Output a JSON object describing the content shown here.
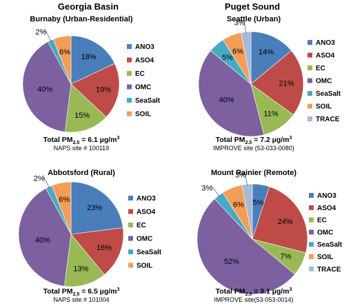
{
  "region_titles": [
    "Georgia Basin",
    "Puget Sound"
  ],
  "chart_data": [
    {
      "type": "pie",
      "title": "Burnaby (Urban-Residential)",
      "slices": [
        {
          "label": "ANO3",
          "value": 18,
          "label_text": "18%",
          "color": "#4a7ebb"
        },
        {
          "label": "ASO4",
          "value": 19,
          "label_text": "19%",
          "color": "#be4b48"
        },
        {
          "label": "EC",
          "value": 15,
          "label_text": "15%",
          "color": "#98b954"
        },
        {
          "label": "OMC",
          "value": 40,
          "label_text": "40%",
          "color": "#7d60a0"
        },
        {
          "label": "SeaSalt",
          "value": 2,
          "label_text": "2%",
          "color": "#46aac5"
        },
        {
          "label": "SOIL",
          "value": 6,
          "label_text": "6%",
          "color": "#f59d56"
        }
      ],
      "legend": [
        "ANO3",
        "ASO4",
        "EC",
        "OMC",
        "SeaSalt",
        "SOIL"
      ],
      "legend_placement": "right",
      "footer_total": "6.1 µg/m³",
      "footer_site": "NAPS site # 100119"
    },
    {
      "type": "pie",
      "title": "Seattle (Urban)",
      "slices": [
        {
          "label": "ANO3",
          "value": 14,
          "label_text": "14%",
          "color": "#4a7ebb"
        },
        {
          "label": "ASO4",
          "value": 21,
          "label_text": "21%",
          "color": "#be4b48"
        },
        {
          "label": "EC",
          "value": 11,
          "label_text": "11%",
          "color": "#98b954"
        },
        {
          "label": "OMC",
          "value": 40,
          "label_text": "40%",
          "color": "#7d60a0"
        },
        {
          "label": "SeaSalt",
          "value": 5,
          "label_text": "5%",
          "color": "#46aac5"
        },
        {
          "label": "SOIL",
          "value": 6,
          "label_text": "6%",
          "color": "#f59d56"
        },
        {
          "label": "TRACE",
          "value": 3,
          "label_text": "3%",
          "color": "#a5b9d8"
        }
      ],
      "legend": [
        "ANO3",
        "ASO4",
        "EC",
        "OMC",
        "SeaSalt",
        "SOIL",
        "TRACE"
      ],
      "legend_placement": "right",
      "footer_total": "7.2 µg/m³",
      "footer_site": "IMPROVE site (53-033-0080)"
    },
    {
      "type": "pie",
      "title": "Abbotsford (Rural)",
      "slices": [
        {
          "label": "ANO3",
          "value": 23,
          "label_text": "23%",
          "color": "#4a7ebb"
        },
        {
          "label": "ASO4",
          "value": 16,
          "label_text": "16%",
          "color": "#be4b48"
        },
        {
          "label": "EC",
          "value": 13,
          "label_text": "13%",
          "color": "#98b954"
        },
        {
          "label": "OMC",
          "value": 40,
          "label_text": "40%",
          "color": "#7d60a0"
        },
        {
          "label": "SeaSalt",
          "value": 2,
          "label_text": "2%",
          "color": "#46aac5"
        },
        {
          "label": "SOIL",
          "value": 6,
          "label_text": "6%",
          "color": "#f59d56"
        }
      ],
      "legend": [
        "ANO3",
        "ASO4",
        "EC",
        "OMC",
        "SeaSalt",
        "SOIL"
      ],
      "legend_placement": "right",
      "footer_total": "6.5 µg/m³",
      "footer_site": "NAPS site # 101004"
    },
    {
      "type": "pie",
      "title": "Mount Rainier (Remote)",
      "slices": [
        {
          "label": "ANO3",
          "value": 5,
          "label_text": "5%",
          "color": "#4a7ebb"
        },
        {
          "label": "ASO4",
          "value": 24,
          "label_text": "24%",
          "color": "#be4b48"
        },
        {
          "label": "EC",
          "value": 7,
          "label_text": "7%",
          "color": "#98b954"
        },
        {
          "label": "OMC",
          "value": 52,
          "label_text": "52%",
          "color": "#7d60a0"
        },
        {
          "label": "SeaSalt",
          "value": 3,
          "label_text": "3%",
          "color": "#46aac5"
        },
        {
          "label": "SOIL",
          "value": 6,
          "label_text": "6%",
          "color": "#f59d56"
        },
        {
          "label": "TRACE",
          "value": 3,
          "label_text": "3%",
          "color": "#a5b9d8"
        }
      ],
      "legend": [
        "ANO3",
        "ASO4",
        "EC",
        "OMC",
        "SeaSalt",
        "SOIL",
        "TRACE"
      ],
      "legend_placement": "right",
      "footer_total": "3.1 µg/m³",
      "footer_site": "IMPROVE site(53-053-0014)"
    }
  ]
}
